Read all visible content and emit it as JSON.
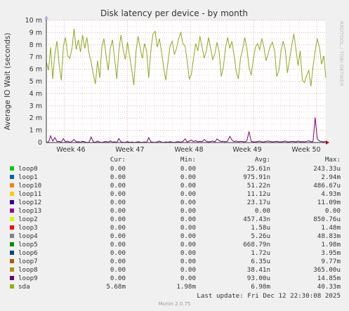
{
  "chart_data": {
    "type": "line",
    "title": "Disk latency per device - by month",
    "ylabel": "Average IO Wait (seconds)",
    "ylim": [
      0,
      10
    ],
    "y_ticks": [
      "0",
      "1 m",
      "2 m",
      "3 m",
      "4 m",
      "5 m",
      "6 m",
      "7 m",
      "8 m",
      "9 m",
      "10 m"
    ],
    "x_ticks": [
      "Week 46",
      "Week 47",
      "Week 48",
      "Week 49",
      "Week 50"
    ],
    "side_label": "RRDTOOL / TOBI OETIKER",
    "series": [
      {
        "name": "sda",
        "color": "#8fa81f",
        "unit": "ms",
        "values": [
          6.6,
          5.9,
          7.8,
          5.2,
          7.3,
          8.3,
          6.4,
          5.1,
          7.9,
          8.6,
          7.1,
          6.9,
          7.7,
          9.3,
          7.6,
          8.4,
          7.4,
          8.8,
          7.7,
          8.6,
          7.3,
          6.6,
          5.6,
          4.8,
          6.7,
          5.3,
          7.8,
          8.5,
          7.1,
          5.9,
          7.7,
          8.4,
          6.9,
          5.2,
          7.6,
          8.8,
          7.6,
          6.8,
          8.2,
          7.1,
          6.0,
          4.7,
          7.4,
          8.7,
          7.7,
          6.9,
          8.1,
          7.5,
          5.3,
          7.6,
          8.9,
          9.1,
          7.8,
          8.5,
          7.4,
          6.1,
          5.1,
          6.6,
          7.9,
          8.3,
          7.2,
          7.7,
          8.5,
          9.0,
          8.1,
          7.9,
          6.7,
          5.2,
          5.6,
          6.9,
          8.1,
          7.5,
          8.7,
          7.8,
          6.9,
          7.5,
          8.6,
          7.7,
          6.8,
          7.3,
          8.2,
          7.4,
          5.4,
          6.2,
          7.8,
          8.6,
          7.7,
          8.3,
          7.1,
          5.8,
          5.2,
          6.9,
          7.6,
          8.6,
          7.7,
          6.2,
          5.5,
          6.8,
          7.8,
          8.1,
          7.6,
          8.5,
          7.8,
          6.7,
          7.3,
          7.9,
          8.2,
          7.5,
          5.4,
          5.9,
          7.5,
          8.3,
          7.6,
          5.7,
          6.8,
          7.9,
          8.9,
          7.6,
          6.3,
          7.5,
          5.1,
          4.9,
          5.5,
          5.9,
          4.6,
          6.2,
          7.5,
          8.5,
          7.8,
          6.4,
          7.1,
          5.3
        ]
      },
      {
        "name": "loop0",
        "color": "#00cc00",
        "values": [
          0,
          0,
          0,
          0,
          0,
          0,
          0,
          0,
          0,
          0,
          0,
          0,
          0,
          0,
          0,
          0,
          0,
          0,
          0,
          0,
          0,
          0,
          0,
          0,
          0,
          0,
          0,
          0,
          0,
          0,
          0,
          0,
          0,
          0,
          0,
          0,
          0,
          0,
          0,
          0,
          0,
          0,
          0,
          0,
          0,
          0,
          0,
          0,
          0,
          0,
          0,
          0,
          0,
          0,
          0,
          0,
          0,
          0,
          0,
          0,
          0,
          0,
          0,
          0,
          0,
          0,
          0,
          0,
          0,
          0,
          0,
          0,
          0,
          0,
          0,
          0,
          0,
          0,
          0,
          0,
          0,
          0,
          0,
          0,
          0,
          0,
          0,
          0,
          0,
          0,
          0,
          0,
          0,
          0,
          0,
          0,
          0,
          0,
          0,
          0,
          0,
          0,
          0,
          0,
          0,
          0,
          0,
          0,
          0,
          0,
          0,
          0,
          0,
          0,
          0,
          0,
          0,
          0,
          0,
          0,
          0,
          0,
          0,
          0,
          0,
          0,
          0,
          0,
          0,
          0,
          0,
          0
        ]
      },
      {
        "name": "loop9",
        "color": "#7a0177",
        "unit": "ms",
        "values": [
          0.05,
          0.02,
          0.55,
          0.12,
          0.4,
          0.08,
          0.1,
          0.03,
          0.32,
          0.05,
          0.12,
          0.02,
          0.09,
          0.25,
          0.05,
          0.07,
          0.02,
          0.11,
          0.05,
          0.01,
          0.03,
          0.45,
          0.06,
          0.02,
          0.12,
          0.03,
          0.01,
          0.05,
          0.09,
          0.02,
          0.14,
          0.03,
          0.06,
          0.02,
          0.32,
          0.05,
          0.03,
          0.01,
          0.08,
          0.02,
          0.04,
          0.01,
          0.02,
          0.07,
          0.03,
          0.01,
          0.05,
          0.02,
          0.4,
          0.06,
          0.03,
          0.02,
          0.05,
          0.12,
          0.03,
          0.01,
          0.06,
          0.02,
          0.08,
          0.03,
          0.02,
          0.05,
          0.07,
          0.03,
          0.08,
          0.3,
          0.05,
          0.12,
          0.2,
          0.08,
          0.15,
          0.05,
          0.1,
          0.07,
          0.25,
          0.1,
          0.05,
          0.08,
          0.12,
          0.06,
          0.3,
          0.15,
          0.08,
          0.1,
          0.05,
          0.12,
          0.5,
          0.2,
          0.08,
          0.12,
          0.06,
          0.1,
          0.08,
          0.05,
          0.13,
          0.9,
          0.1,
          0.06,
          0.05,
          0.08,
          0.12,
          0.06,
          0.05,
          0.1,
          0.12,
          0.08,
          0.05,
          0.07,
          0.1,
          0.06,
          0.05,
          0.08,
          0.12,
          0.05,
          0.06,
          0.1,
          0.08,
          0.05,
          0.12,
          0.06,
          0.08,
          0.05,
          0.1,
          0.15,
          0.06,
          0.08,
          2.05,
          0.3,
          0.12,
          0.08,
          0.05,
          0.1
        ]
      }
    ]
  },
  "legend": {
    "headers": {
      "cur": "Cur:",
      "min": "Min:",
      "avg": "Avg:",
      "max": "Max:"
    },
    "rows": [
      {
        "name": "loop0",
        "color": "#00cc00",
        "cur": "0.00",
        "min": "0.00",
        "avg": "25.61n",
        "max": "243.33u"
      },
      {
        "name": "loop1",
        "color": "#0066b3",
        "cur": "0.00",
        "min": "0.00",
        "avg": "975.91n",
        "max": "2.94m"
      },
      {
        "name": "loop10",
        "color": "#ff8000",
        "cur": "0.00",
        "min": "0.00",
        "avg": "51.22n",
        "max": "486.67u"
      },
      {
        "name": "loop11",
        "color": "#ffcc00",
        "cur": "0.00",
        "min": "0.00",
        "avg": "11.12u",
        "max": "4.93m"
      },
      {
        "name": "loop12",
        "color": "#330099",
        "cur": "0.00",
        "min": "0.00",
        "avg": "23.17u",
        "max": "11.09m"
      },
      {
        "name": "loop13",
        "color": "#990099",
        "cur": "0.00",
        "min": "0.00",
        "avg": "0.00",
        "max": "0.00"
      },
      {
        "name": "loop2",
        "color": "#ccff00",
        "cur": "0.00",
        "min": "0.00",
        "avg": "457.43n",
        "max": "850.76u"
      },
      {
        "name": "loop3",
        "color": "#ff0000",
        "cur": "0.00",
        "min": "0.00",
        "avg": "1.58u",
        "max": "1.48m"
      },
      {
        "name": "loop4",
        "color": "#808080",
        "cur": "0.00",
        "min": "0.00",
        "avg": "5.26u",
        "max": "48.83m"
      },
      {
        "name": "loop5",
        "color": "#008f00",
        "cur": "0.00",
        "min": "0.00",
        "avg": "668.79n",
        "max": "1.98m"
      },
      {
        "name": "loop6",
        "color": "#00487d",
        "cur": "0.00",
        "min": "0.00",
        "avg": "1.72u",
        "max": "3.95m"
      },
      {
        "name": "loop7",
        "color": "#b35a00",
        "cur": "0.00",
        "min": "0.00",
        "avg": "6.35u",
        "max": "9.77m"
      },
      {
        "name": "loop8",
        "color": "#b38f00",
        "cur": "0.00",
        "min": "0.00",
        "avg": "38.41n",
        "max": "365.00u"
      },
      {
        "name": "loop9",
        "color": "#6b006b",
        "cur": "0.00",
        "min": "0.00",
        "avg": "93.00u",
        "max": "14.85m"
      },
      {
        "name": "sda",
        "color": "#8fb300",
        "cur": "5.68m",
        "min": "1.98m",
        "avg": "6.98m",
        "max": "40.33m"
      }
    ],
    "last_update": "Last update: Fri Dec 12 22:30:08 2025"
  },
  "footer": {
    "munin": "Munin 2.0.75"
  }
}
